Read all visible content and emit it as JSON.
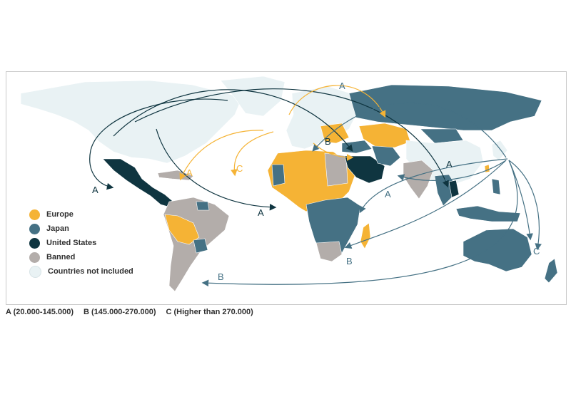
{
  "colors": {
    "europe": "#f5b335",
    "japan": "#457184",
    "united_states": "#0f3540",
    "banned": "#b3adaa",
    "not_included": "#e9f2f4",
    "border": "#ffffff"
  },
  "legend": [
    {
      "label": "Europe",
      "color": "#f5b335"
    },
    {
      "label": "Japan",
      "color": "#457184"
    },
    {
      "label": "United States",
      "color": "#0f3540"
    },
    {
      "label": "Banned",
      "color": "#b3adaa"
    },
    {
      "label": "Countries not included",
      "color": "#e9f2f4"
    }
  ],
  "ranges": [
    "A (20.000-145.000)",
    "B (145.000-270.000)",
    "C (Higher than 270.000)"
  ],
  "flow_labels": {
    "us_mexico": "A",
    "us_africa": "A",
    "eu_caribbean": "A",
    "eu_atlantic": "C",
    "eu_middle_east": "B",
    "top": "A",
    "eu_asia": "A",
    "jp_india": "A",
    "jp_africa": "B",
    "jp_australia": "C",
    "jp_south_america": "B"
  }
}
